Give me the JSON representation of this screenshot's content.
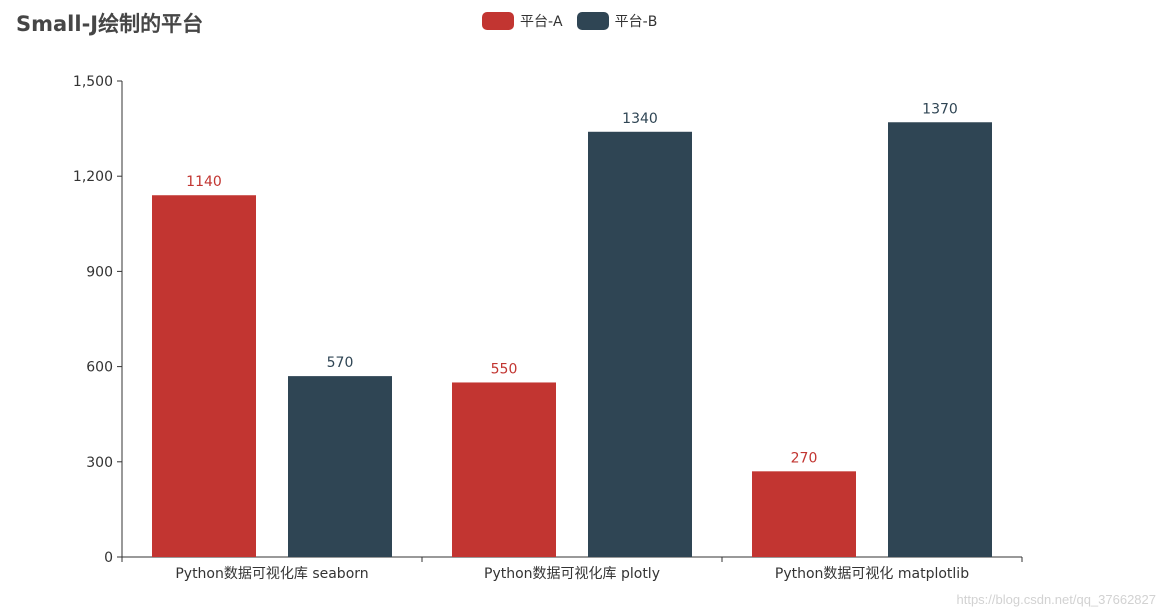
{
  "chart_data": {
    "type": "bar",
    "title": "Small-J绘制的平台",
    "categories": [
      "Python数据可视化库 seaborn",
      "Python数据可视化库 plotly",
      "Python数据可视化 matplotlib"
    ],
    "series": [
      {
        "name": "平台-A",
        "color": "#c23531",
        "values": [
          1140,
          550,
          270
        ]
      },
      {
        "name": "平台-B",
        "color": "#2f4554",
        "values": [
          570,
          1340,
          1370
        ]
      }
    ],
    "yticks": [
      "0",
      "300",
      "600",
      "900",
      "1,200",
      "1,500"
    ],
    "ylim": [
      0,
      1500
    ],
    "legend_position": "top-center",
    "grid": false
  },
  "watermark": "https://blog.csdn.net/qq_37662827"
}
